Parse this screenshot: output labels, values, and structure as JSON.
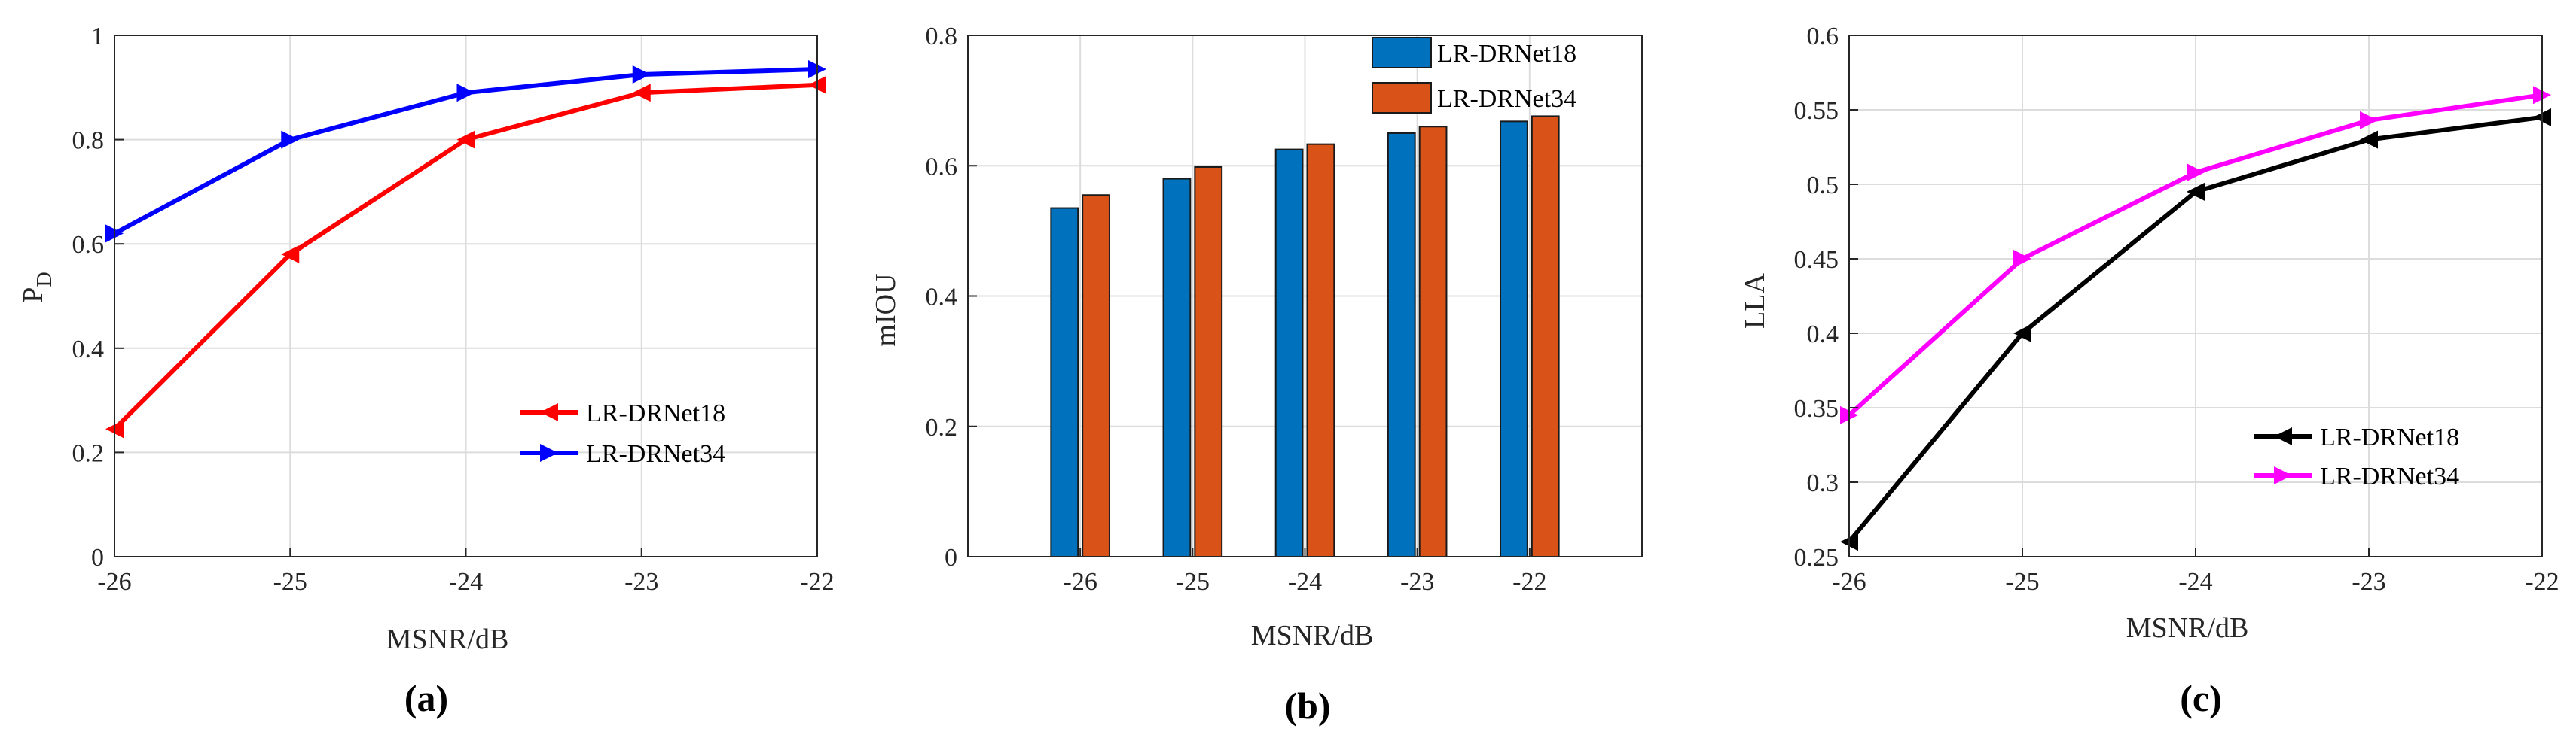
{
  "chart_data": [
    {
      "id": "a",
      "type": "line",
      "caption": "(a)",
      "xlabel": "MSNR/dB",
      "ylabel_main": "P",
      "ylabel_sub": "D",
      "x": [
        -26,
        -25,
        -24,
        -23,
        -22
      ],
      "xticks": [
        "-26",
        "-25",
        "-24",
        "-23",
        "-22"
      ],
      "xlim": [
        -26,
        -22
      ],
      "ylim": [
        0,
        1
      ],
      "yticks": [
        0,
        0.2,
        0.4,
        0.6,
        0.8,
        1
      ],
      "ytick_labels": [
        "0",
        "0.2",
        "0.4",
        "0.6",
        "0.8",
        "1"
      ],
      "grid": true,
      "legend": "bottom-right",
      "series": [
        {
          "name": "LR-DRNet18",
          "color": "#ff0000",
          "marker": "triangle-left",
          "values": [
            0.245,
            0.58,
            0.8,
            0.89,
            0.905
          ]
        },
        {
          "name": "LR-DRNet34",
          "color": "#0000ff",
          "marker": "triangle-right",
          "values": [
            0.62,
            0.8,
            0.89,
            0.925,
            0.935
          ]
        }
      ]
    },
    {
      "id": "b",
      "type": "bar",
      "caption": "(b)",
      "xlabel": "MSNR/dB",
      "ylabel": "mIOU",
      "categories": [
        "-26",
        "-25",
        "-24",
        "-23",
        "-22"
      ],
      "ylim": [
        0,
        0.8
      ],
      "yticks": [
        0,
        0.2,
        0.4,
        0.6,
        0.8
      ],
      "ytick_labels": [
        "0",
        "0.2",
        "0.4",
        "0.6",
        "0.8"
      ],
      "grid": true,
      "legend": "top-right",
      "series": [
        {
          "name": "LR-DRNet18",
          "color": "#0072bd",
          "values": [
            0.535,
            0.58,
            0.625,
            0.65,
            0.668
          ]
        },
        {
          "name": "LR-DRNet34",
          "color": "#d95319",
          "values": [
            0.555,
            0.598,
            0.633,
            0.66,
            0.676
          ]
        }
      ]
    },
    {
      "id": "c",
      "type": "line",
      "caption": "(c)",
      "xlabel": "MSNR/dB",
      "ylabel": "LLA",
      "x": [
        -26,
        -25,
        -24,
        -23,
        -22
      ],
      "xticks": [
        "-26",
        "-25",
        "-24",
        "-23",
        "-22"
      ],
      "xlim": [
        -26,
        -22
      ],
      "ylim": [
        0.25,
        0.6
      ],
      "yticks": [
        0.25,
        0.3,
        0.35,
        0.4,
        0.45,
        0.5,
        0.55,
        0.6
      ],
      "ytick_labels": [
        "0.25",
        "0.3",
        "0.35",
        "0.4",
        "0.45",
        "0.5",
        "0.55",
        "0.6"
      ],
      "grid": true,
      "legend": "bottom-right",
      "series": [
        {
          "name": "LR-DRNet18",
          "color": "#000000",
          "marker": "triangle-left",
          "values": [
            0.26,
            0.4,
            0.495,
            0.53,
            0.545
          ]
        },
        {
          "name": "LR-DRNet34",
          "color": "#ff00ff",
          "marker": "triangle-right",
          "values": [
            0.345,
            0.45,
            0.508,
            0.543,
            0.56
          ]
        }
      ]
    }
  ]
}
